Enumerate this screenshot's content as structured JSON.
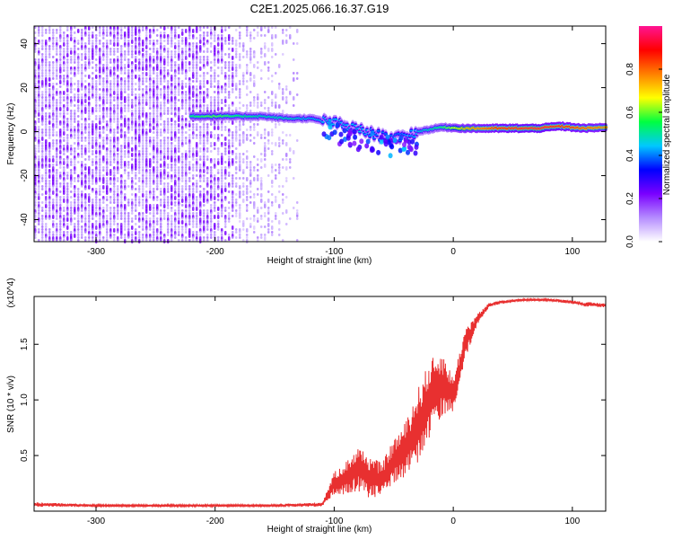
{
  "title": "C2E1.2025.066.16.37.G19",
  "chart_data": [
    {
      "type": "heatmap",
      "xlabel": "Height of straight line (km)",
      "ylabel": "Frequency (Hz)",
      "xlim": [
        -352,
        128
      ],
      "ylim": [
        -50,
        48
      ],
      "xticks": [
        -300,
        -200,
        -100,
        0,
        100
      ],
      "yticks": [
        -40,
        -20,
        0,
        20,
        40
      ],
      "colorbar": {
        "label": "Normalized spectral amplitude",
        "range": [
          0,
          1
        ],
        "ticks": [
          0.0,
          0.2,
          0.4,
          0.6,
          0.8
        ],
        "colors": [
          "#ffffff",
          "#b58cff",
          "#7a00ff",
          "#0000ff",
          "#00c8ff",
          "#00ff40",
          "#ffff00",
          "#ff7f00",
          "#ff0000",
          "#ff1493"
        ]
      },
      "noise_region": {
        "x": [
          -352,
          -130
        ],
        "y": [
          -50,
          48
        ],
        "amplitude": 0.2
      },
      "ridge": [
        {
          "x": -220,
          "y": 7,
          "amplitude": 0.55
        },
        {
          "x": -200,
          "y": 7,
          "amplitude": 0.6
        },
        {
          "x": -180,
          "y": 7,
          "amplitude": 0.55
        },
        {
          "x": -160,
          "y": 7,
          "amplitude": 0.5
        },
        {
          "x": -140,
          "y": 6,
          "amplitude": 0.5
        },
        {
          "x": -120,
          "y": 6,
          "amplitude": 0.45
        },
        {
          "x": -100,
          "y": 4,
          "amplitude": 0.45
        },
        {
          "x": -80,
          "y": 1,
          "amplitude": 0.45
        },
        {
          "x": -60,
          "y": -2,
          "amplitude": 0.4
        },
        {
          "x": -45,
          "y": -3,
          "amplitude": 0.4
        },
        {
          "x": -30,
          "y": 0,
          "amplitude": 0.45
        },
        {
          "x": -10,
          "y": 2,
          "amplitude": 0.55
        },
        {
          "x": 10,
          "y": 1.5,
          "amplitude": 0.75
        },
        {
          "x": 40,
          "y": 1.5,
          "amplitude": 0.9
        },
        {
          "x": 70,
          "y": 1.5,
          "amplitude": 0.95
        },
        {
          "x": 90,
          "y": 2.5,
          "amplitude": 0.9
        },
        {
          "x": 110,
          "y": 1.5,
          "amplitude": 0.85
        },
        {
          "x": 128,
          "y": 2,
          "amplitude": 0.8
        }
      ]
    },
    {
      "type": "line",
      "xlabel": "Height of straight line (km)",
      "ylabel": "SNR (10 * v/v)",
      "y_multiplier": "(x10^4)",
      "xlim": [
        -352,
        128
      ],
      "ylim": [
        0,
        1.93
      ],
      "xticks": [
        -300,
        -200,
        -100,
        0,
        100
      ],
      "yticks": [
        0.5,
        1.0,
        1.5
      ],
      "ytick_labels": [
        "0.5",
        "1.0",
        "1.5"
      ],
      "color": "#e83030",
      "x": [
        -352,
        -300,
        -250,
        -200,
        -150,
        -110,
        -100,
        -90,
        -80,
        -70,
        -60,
        -50,
        -40,
        -30,
        -20,
        -10,
        0,
        10,
        20,
        30,
        40,
        60,
        80,
        100,
        110,
        128
      ],
      "y": [
        0.06,
        0.05,
        0.05,
        0.05,
        0.05,
        0.06,
        0.25,
        0.3,
        0.38,
        0.3,
        0.28,
        0.45,
        0.55,
        0.75,
        1.0,
        1.15,
        1.05,
        1.5,
        1.72,
        1.85,
        1.88,
        1.9,
        1.9,
        1.88,
        1.86,
        1.85
      ],
      "noise_amplitude": [
        0.02,
        0.01,
        0.01,
        0.01,
        0.01,
        0.02,
        0.1,
        0.15,
        0.2,
        0.2,
        0.15,
        0.2,
        0.25,
        0.35,
        0.35,
        0.3,
        0.15,
        0.15,
        0.05,
        0.02,
        0.015,
        0.01,
        0.01,
        0.015,
        0.02,
        0.02
      ]
    }
  ]
}
